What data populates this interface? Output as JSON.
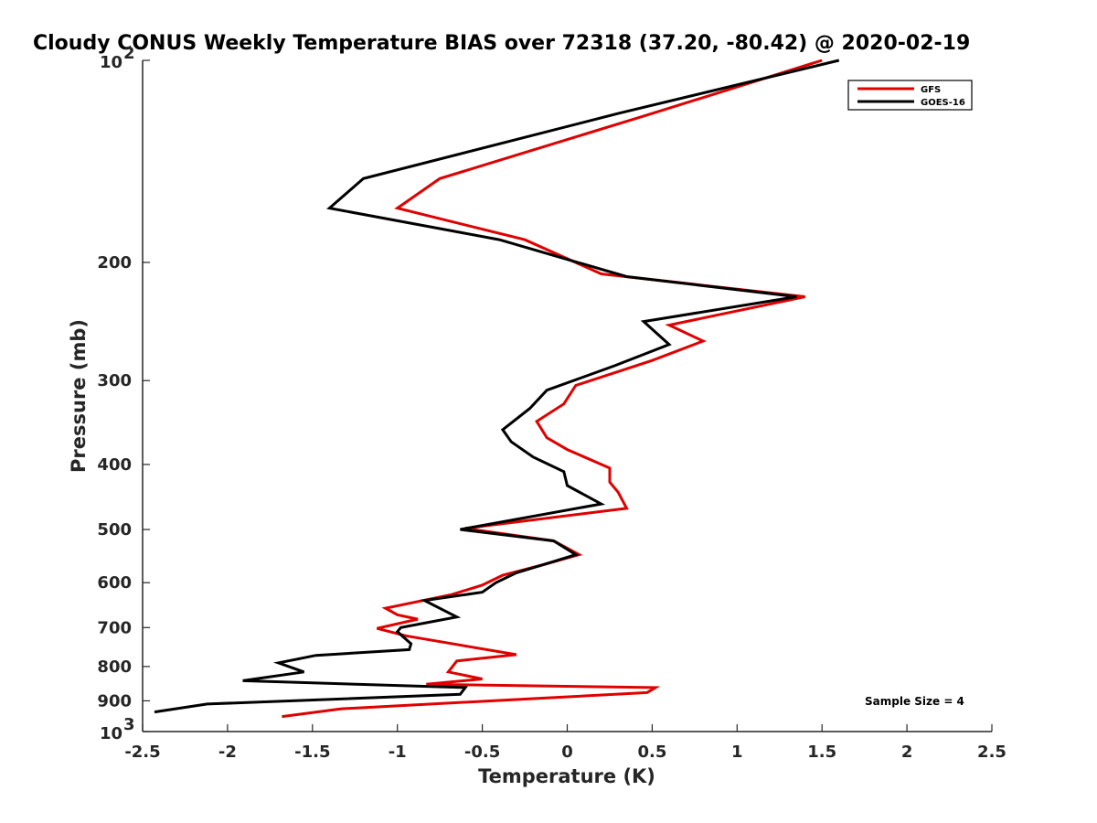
{
  "chart_data": {
    "type": "line",
    "title": "Cloudy CONUS Weekly Temperature BIAS over 72318 (37.20, -80.42) @ 2020-02-19",
    "xlabel": "Temperature (K)",
    "ylabel": "Pressure (mb)",
    "xlim": [
      -2.5,
      2.5
    ],
    "ylim": [
      100,
      1000
    ],
    "y_scale": "log",
    "y_reversed": true,
    "grid": false,
    "legend_position": "top-right",
    "x_ticks": [
      "-2.5",
      "-2",
      "-1.5",
      "-1",
      "-0.5",
      "0",
      "0.5",
      "1",
      "1.5",
      "2",
      "2.5"
    ],
    "y_ticks": [
      {
        "value": 100,
        "base": "10",
        "exp": "2"
      },
      {
        "value": 200,
        "label": "200"
      },
      {
        "value": 300,
        "label": "300"
      },
      {
        "value": 400,
        "label": "400"
      },
      {
        "value": 500,
        "label": "500"
      },
      {
        "value": 600,
        "label": "600"
      },
      {
        "value": 700,
        "label": "700"
      },
      {
        "value": 800,
        "label": "800"
      },
      {
        "value": 900,
        "label": "900"
      },
      {
        "value": 1000,
        "base": "10",
        "exp": "3"
      }
    ],
    "annotation": "Sample Size = 4",
    "series": [
      {
        "name": "GFS",
        "color": "#e00000",
        "points": [
          [
            1.5,
            100
          ],
          [
            0.5,
            120
          ],
          [
            -0.75,
            150
          ],
          [
            -1.0,
            166
          ],
          [
            -0.25,
            185
          ],
          [
            0.2,
            208
          ],
          [
            1.4,
            225
          ],
          [
            0.6,
            248
          ],
          [
            0.8,
            262
          ],
          [
            0.5,
            280
          ],
          [
            0.05,
            305
          ],
          [
            -0.02,
            325
          ],
          [
            -0.18,
            345
          ],
          [
            -0.12,
            365
          ],
          [
            0.0,
            380
          ],
          [
            0.25,
            405
          ],
          [
            0.25,
            425
          ],
          [
            0.3,
            440
          ],
          [
            0.35,
            465
          ],
          [
            -0.6,
            498
          ],
          [
            -0.08,
            520
          ],
          [
            0.07,
            545
          ],
          [
            -0.15,
            565
          ],
          [
            -0.38,
            585
          ],
          [
            -0.5,
            605
          ],
          [
            -0.68,
            625
          ],
          [
            -1.07,
            655
          ],
          [
            -1.0,
            670
          ],
          [
            -0.88,
            680
          ],
          [
            -1.12,
            702
          ],
          [
            -0.95,
            720
          ],
          [
            -0.3,
            768
          ],
          [
            -0.65,
            785
          ],
          [
            -0.7,
            815
          ],
          [
            -0.5,
            835
          ],
          [
            -0.83,
            850
          ],
          [
            0.52,
            860
          ],
          [
            0.47,
            875
          ],
          [
            -1.33,
            925
          ],
          [
            -1.68,
            950
          ]
        ]
      },
      {
        "name": "GOES-16",
        "color": "#000000",
        "points": [
          [
            1.6,
            100
          ],
          [
            0.3,
            120
          ],
          [
            -1.2,
            150
          ],
          [
            -1.4,
            166
          ],
          [
            -0.4,
            185
          ],
          [
            0.35,
            210
          ],
          [
            1.35,
            225
          ],
          [
            0.45,
            245
          ],
          [
            0.6,
            265
          ],
          [
            0.28,
            285
          ],
          [
            -0.12,
            310
          ],
          [
            -0.22,
            330
          ],
          [
            -0.38,
            355
          ],
          [
            -0.33,
            370
          ],
          [
            -0.2,
            390
          ],
          [
            -0.02,
            410
          ],
          [
            0.0,
            430
          ],
          [
            0.2,
            458
          ],
          [
            -0.63,
            500
          ],
          [
            -0.08,
            520
          ],
          [
            0.05,
            545
          ],
          [
            -0.1,
            560
          ],
          [
            -0.3,
            580
          ],
          [
            -0.42,
            600
          ],
          [
            -0.5,
            620
          ],
          [
            -0.84,
            638
          ],
          [
            -0.65,
            675
          ],
          [
            -0.98,
            700
          ],
          [
            -1.0,
            710
          ],
          [
            -0.92,
            740
          ],
          [
            -0.93,
            755
          ],
          [
            -1.48,
            770
          ],
          [
            -1.7,
            790
          ],
          [
            -1.55,
            815
          ],
          [
            -1.91,
            840
          ],
          [
            -0.6,
            860
          ],
          [
            -0.63,
            880
          ],
          [
            -2.12,
            910
          ],
          [
            -2.43,
            935
          ]
        ]
      }
    ]
  }
}
